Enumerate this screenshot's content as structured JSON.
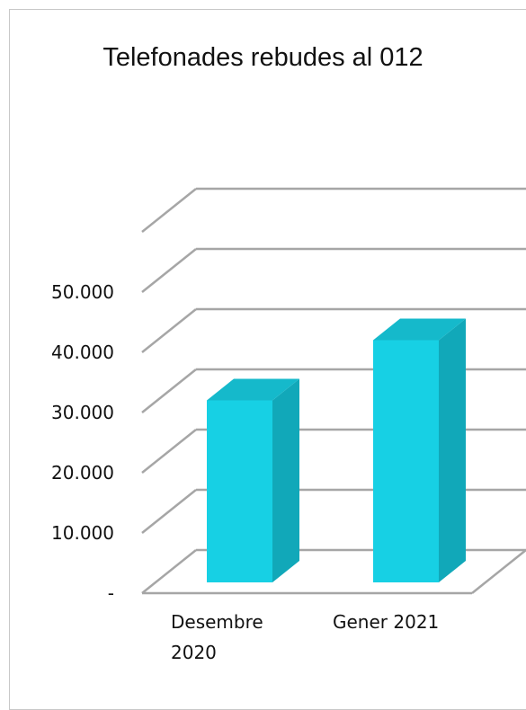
{
  "chart_data": {
    "type": "bar",
    "style": "3d-column",
    "title": "Telefonades rebudes al 012",
    "categories": [
      [
        "Desembre",
        "2020"
      ],
      [
        "Gener 2021"
      ]
    ],
    "values": [
      35000,
      45000
    ],
    "ylim": [
      0,
      60000
    ],
    "y_ticks": [
      "-",
      "10.000",
      "20.000",
      "30.000",
      "40.000",
      "50.000"
    ],
    "grid": true,
    "colors": {
      "bar_front": "#17d0e4",
      "bar_side": "#11a8b9",
      "bar_top": "#15b9cb",
      "grid": "#a6a6a6"
    }
  }
}
